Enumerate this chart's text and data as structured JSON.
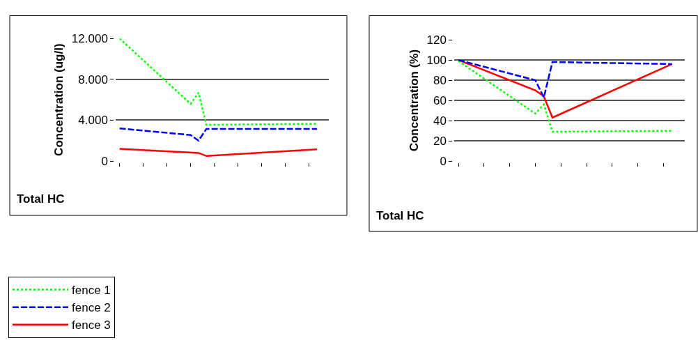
{
  "chart_data": [
    {
      "type": "line",
      "ylabel": "Concentration (ug/l)",
      "annotations": [
        "Total HC"
      ],
      "categories": [
        null,
        null,
        null,
        null,
        null,
        null,
        null,
        null,
        null,
        null,
        null,
        null,
        null,
        null,
        null,
        null,
        null,
        null,
        null,
        null,
        null,
        null,
        null,
        null,
        null,
        null,
        null
      ],
      "ylim": [
        0,
        12000
      ],
      "yticks": [
        0,
        {
          "value": 4000,
          "label": "4.000"
        },
        {
          "value": 8000,
          "label": "8.000"
        },
        {
          "value": 12000,
          "label": "12.000"
        }
      ],
      "tick_labels": "y",
      "grid": "y",
      "legend": "bottom left",
      "marker": "none",
      "series": [
        {
          "name": "fence 1",
          "color": "#00ff00",
          "line_style": "dotted",
          "values": [
            12000,
            null,
            null,
            null,
            null,
            null,
            null,
            null,
            null,
            5600,
            6700,
            3550,
            null,
            null,
            null,
            null,
            null,
            null,
            null,
            null,
            null,
            null,
            null,
            null,
            null,
            3650,
            null
          ]
        },
        {
          "name": "fence 2",
          "color": "#0000ff",
          "line_style": "dashed",
          "values": [
            3200,
            null,
            null,
            null,
            null,
            null,
            null,
            null,
            null,
            2550,
            2000,
            3150,
            null,
            null,
            null,
            null,
            null,
            null,
            null,
            null,
            null,
            null,
            null,
            null,
            null,
            3150,
            null
          ]
        },
        {
          "name": "fence 3",
          "color": "#ff0000",
          "line_style": "solid",
          "values": [
            1200,
            null,
            null,
            null,
            null,
            null,
            null,
            null,
            null,
            null,
            800,
            500,
            null,
            null,
            null,
            null,
            null,
            null,
            null,
            null,
            null,
            null,
            null,
            null,
            null,
            1150,
            null
          ]
        }
      ]
    },
    {
      "type": "line",
      "ylabel": "Concentration (%)",
      "annotations": [
        "Total HC"
      ],
      "categories": [
        null,
        null,
        null,
        null,
        null,
        null,
        null,
        null,
        null,
        null,
        null,
        null,
        null,
        null,
        null,
        null,
        null,
        null,
        null,
        null,
        null,
        null,
        null,
        null,
        null,
        null,
        null
      ],
      "ylim": [
        0,
        120
      ],
      "yticks": [
        0,
        20,
        40,
        60,
        80,
        100,
        120
      ],
      "tick_labels": "y",
      "grid": "y",
      "marker": "none",
      "series": [
        {
          "color": "#00ff00",
          "line_style": "dotted",
          "values": [
            99,
            null,
            null,
            null,
            null,
            null,
            null,
            null,
            null,
            47,
            56,
            29,
            null,
            null,
            null,
            null,
            null,
            null,
            null,
            null,
            null,
            null,
            null,
            null,
            null,
            30,
            null
          ]
        },
        {
          "color": "#0000ff",
          "line_style": "dashed",
          "values": [
            100,
            null,
            null,
            null,
            null,
            null,
            null,
            null,
            null,
            80,
            63,
            98,
            null,
            null,
            null,
            null,
            null,
            null,
            null,
            null,
            null,
            null,
            null,
            null,
            null,
            96,
            null
          ]
        },
        {
          "color": "#ff0000",
          "line_style": "solid",
          "values": [
            100,
            null,
            null,
            null,
            null,
            null,
            null,
            null,
            null,
            70,
            64,
            43,
            null,
            null,
            null,
            null,
            null,
            null,
            null,
            null,
            null,
            null,
            null,
            null,
            null,
            96,
            null
          ]
        }
      ]
    }
  ]
}
